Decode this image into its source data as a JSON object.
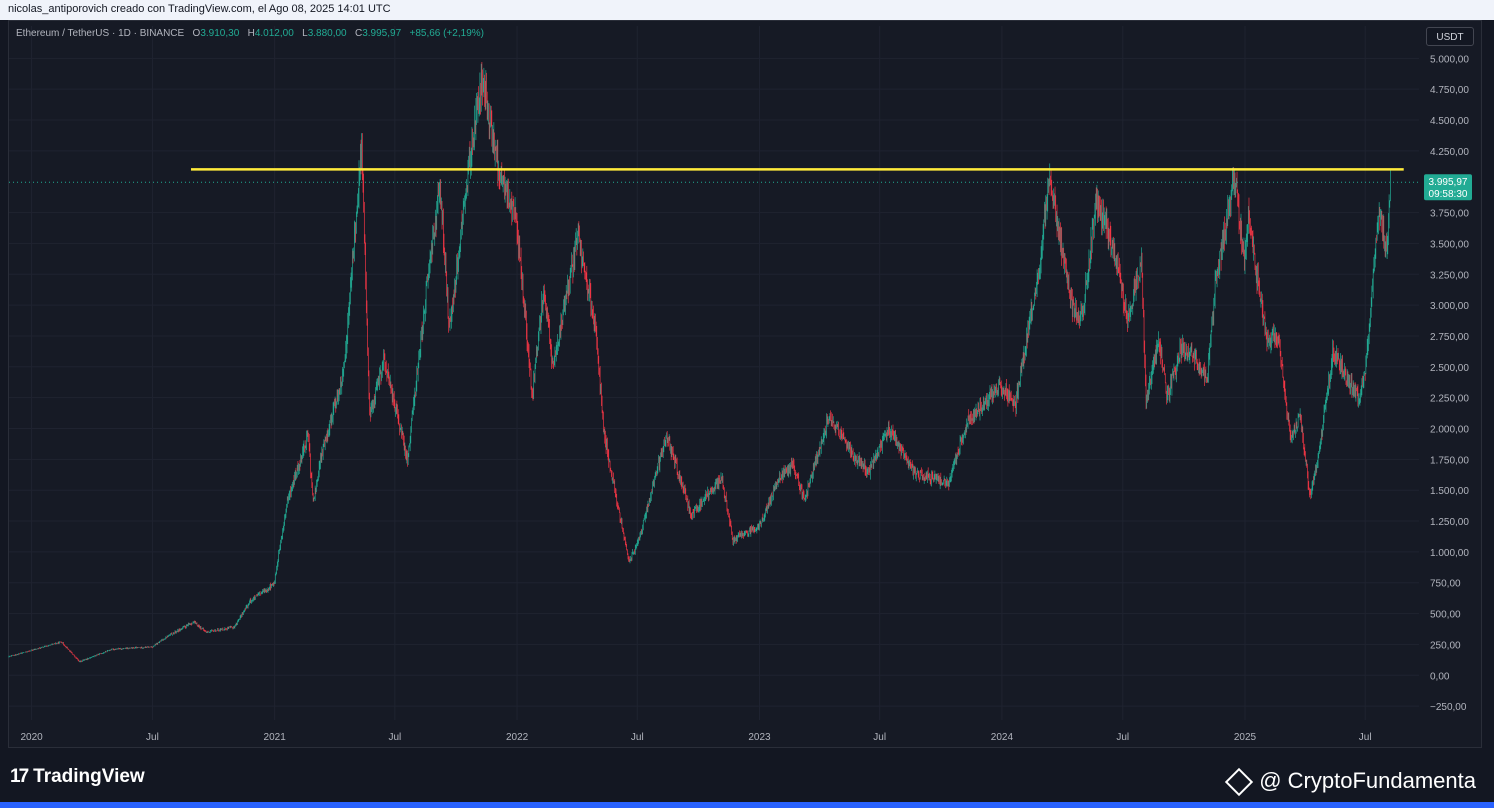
{
  "header": {
    "attribution": "nicolas_antiporovich creado con TradingView.com, el Ago 08, 2025 14:01 UTC"
  },
  "legend": {
    "symbol": "Ethereum / TetherUS · 1D · BINANCE",
    "open_label": "O",
    "open": "3.910,30",
    "high_label": "H",
    "high": "4.012,00",
    "low_label": "L",
    "low": "3.880,00",
    "close_label": "C",
    "close": "3.995,97",
    "change": "+85,66 (+2,19%)"
  },
  "unit_badge": "USDT",
  "price_badge": {
    "price": "3.995,97",
    "countdown": "09:58:30",
    "color": "#22ab94"
  },
  "footer": {
    "brand": "TradingView",
    "credit": "@ CryptoFundamenta"
  },
  "colors": {
    "up": "#22ab94",
    "down": "#f23645",
    "resistance": "#ffeb3b",
    "background": "#161a25"
  },
  "chart_data": {
    "type": "candlestick",
    "symbol": "ETH/USDT",
    "x_tick_labels": [
      "2020",
      "Jul",
      "2021",
      "Jul",
      "2022",
      "Jul",
      "2023",
      "Jul",
      "2024",
      "Jul",
      "2025",
      "Jul"
    ],
    "x_tick_dates": [
      "2020-01-01",
      "2020-07-01",
      "2021-01-01",
      "2021-07-01",
      "2022-01-01",
      "2022-07-01",
      "2023-01-01",
      "2023-07-01",
      "2024-01-01",
      "2024-07-01",
      "2025-01-01",
      "2025-07-01"
    ],
    "y_tick_labels": [
      "5.000,00",
      "4.750,00",
      "4.500,00",
      "4.250,00",
      "3.750,00",
      "3.500,00",
      "3.250,00",
      "3.000,00",
      "2.750,00",
      "2.500,00",
      "2.250,00",
      "2.000,00",
      "1.750,00",
      "1.500,00",
      "1.250,00",
      "1.000,00",
      "750,00",
      "500,00",
      "250,00",
      "0,00",
      "−250,00"
    ],
    "y_tick_values": [
      5000,
      4750,
      4500,
      4250,
      3750,
      3500,
      3250,
      3000,
      2750,
      2500,
      2250,
      2000,
      1750,
      1500,
      1250,
      1000,
      750,
      500,
      250,
      0,
      -250
    ],
    "ylim": [
      -330,
      5100
    ],
    "xlim": [
      "2019-11-28",
      "2025-09-20"
    ],
    "current_price": 3995.97,
    "resistance": {
      "value": 4100,
      "from": "2020-08-28",
      "to": "2025-08-28"
    },
    "price_path": [
      [
        "2019-11-28",
        150
      ],
      [
        "2020-02-15",
        270
      ],
      [
        "2020-03-13",
        110
      ],
      [
        "2020-05-01",
        210
      ],
      [
        "2020-07-01",
        230
      ],
      [
        "2020-07-25",
        320
      ],
      [
        "2020-09-01",
        430
      ],
      [
        "2020-09-20",
        350
      ],
      [
        "2020-11-01",
        390
      ],
      [
        "2020-11-25",
        600
      ],
      [
        "2020-12-31",
        740
      ],
      [
        "2021-01-20",
        1400
      ],
      [
        "2021-02-20",
        1950
      ],
      [
        "2021-02-28",
        1400
      ],
      [
        "2021-03-15",
        1850
      ],
      [
        "2021-04-15",
        2450
      ],
      [
        "2021-05-12",
        4300
      ],
      [
        "2021-05-24",
        2100
      ],
      [
        "2021-06-15",
        2550
      ],
      [
        "2021-07-20",
        1750
      ],
      [
        "2021-08-20",
        3250
      ],
      [
        "2021-09-07",
        3950
      ],
      [
        "2021-09-21",
        2800
      ],
      [
        "2021-10-20",
        4100
      ],
      [
        "2021-11-10",
        4850
      ],
      [
        "2021-12-04",
        4100
      ],
      [
        "2021-12-31",
        3700
      ],
      [
        "2022-01-24",
        2250
      ],
      [
        "2022-02-10",
        3150
      ],
      [
        "2022-02-24",
        2500
      ],
      [
        "2022-04-03",
        3550
      ],
      [
        "2022-04-30",
        2800
      ],
      [
        "2022-05-12",
        1950
      ],
      [
        "2022-06-18",
        930
      ],
      [
        "2022-07-01",
        1050
      ],
      [
        "2022-08-14",
        1950
      ],
      [
        "2022-09-20",
        1300
      ],
      [
        "2022-11-05",
        1600
      ],
      [
        "2022-11-22",
        1100
      ],
      [
        "2022-12-31",
        1200
      ],
      [
        "2023-01-31",
        1600
      ],
      [
        "2023-02-20",
        1700
      ],
      [
        "2023-03-10",
        1420
      ],
      [
        "2023-04-16",
        2100
      ],
      [
        "2023-05-20",
        1800
      ],
      [
        "2023-06-15",
        1650
      ],
      [
        "2023-07-14",
        2000
      ],
      [
        "2023-08-20",
        1650
      ],
      [
        "2023-10-12",
        1550
      ],
      [
        "2023-11-10",
        2050
      ],
      [
        "2023-12-28",
        2350
      ],
      [
        "2024-01-22",
        2200
      ],
      [
        "2024-02-29",
        3400
      ],
      [
        "2024-03-12",
        4050
      ],
      [
        "2024-04-17",
        2950
      ],
      [
        "2024-05-01",
        2900
      ],
      [
        "2024-05-22",
        3850
      ],
      [
        "2024-06-15",
        3500
      ],
      [
        "2024-07-08",
        2900
      ],
      [
        "2024-07-29",
        3350
      ],
      [
        "2024-08-05",
        2200
      ],
      [
        "2024-08-24",
        2750
      ],
      [
        "2024-09-06",
        2250
      ],
      [
        "2024-09-27",
        2650
      ],
      [
        "2024-10-15",
        2600
      ],
      [
        "2024-11-05",
        2400
      ],
      [
        "2024-11-18",
        3200
      ],
      [
        "2024-12-16",
        4050
      ],
      [
        "2024-12-31",
        3350
      ],
      [
        "2025-01-06",
        3700
      ],
      [
        "2025-02-03",
        2700
      ],
      [
        "2025-02-20",
        2750
      ],
      [
        "2025-03-11",
        1900
      ],
      [
        "2025-03-25",
        2100
      ],
      [
        "2025-04-09",
        1450
      ],
      [
        "2025-04-22",
        1800
      ],
      [
        "2025-05-13",
        2600
      ],
      [
        "2025-06-22",
        2250
      ],
      [
        "2025-07-01",
        2450
      ],
      [
        "2025-07-22",
        3800
      ],
      [
        "2025-08-02",
        3400
      ],
      [
        "2025-08-08",
        3995.97
      ]
    ]
  }
}
